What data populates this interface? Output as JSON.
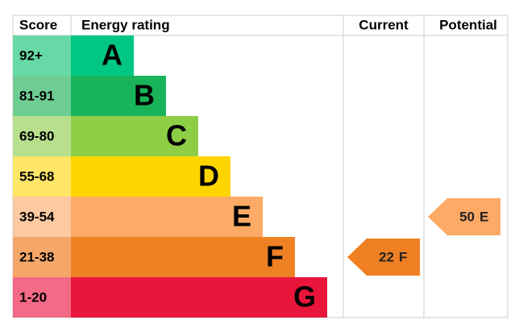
{
  "header": {
    "score": "Score",
    "rating": "Energy rating",
    "current": "Current",
    "potential": "Potential"
  },
  "bands": [
    {
      "score": "92+",
      "letter": "A",
      "color": "#00c781",
      "score_color": "#66d9a6"
    },
    {
      "score": "81-91",
      "letter": "B",
      "color": "#19b459",
      "score_color": "#6fcd93"
    },
    {
      "score": "69-80",
      "letter": "C",
      "color": "#8dce46",
      "score_color": "#b8e08c"
    },
    {
      "score": "55-68",
      "letter": "D",
      "color": "#ffd500",
      "score_color": "#ffe566"
    },
    {
      "score": "39-54",
      "letter": "E",
      "color": "#fcaa65",
      "score_color": "#fdc9a1"
    },
    {
      "score": "21-38",
      "letter": "F",
      "color": "#ef8023",
      "score_color": "#f5a76a"
    },
    {
      "score": "1-20",
      "letter": "G",
      "color": "#e9153b",
      "score_color": "#f26a85"
    }
  ],
  "current": {
    "value": 22,
    "letter": "F"
  },
  "potential": {
    "value": 50,
    "letter": "E"
  }
}
